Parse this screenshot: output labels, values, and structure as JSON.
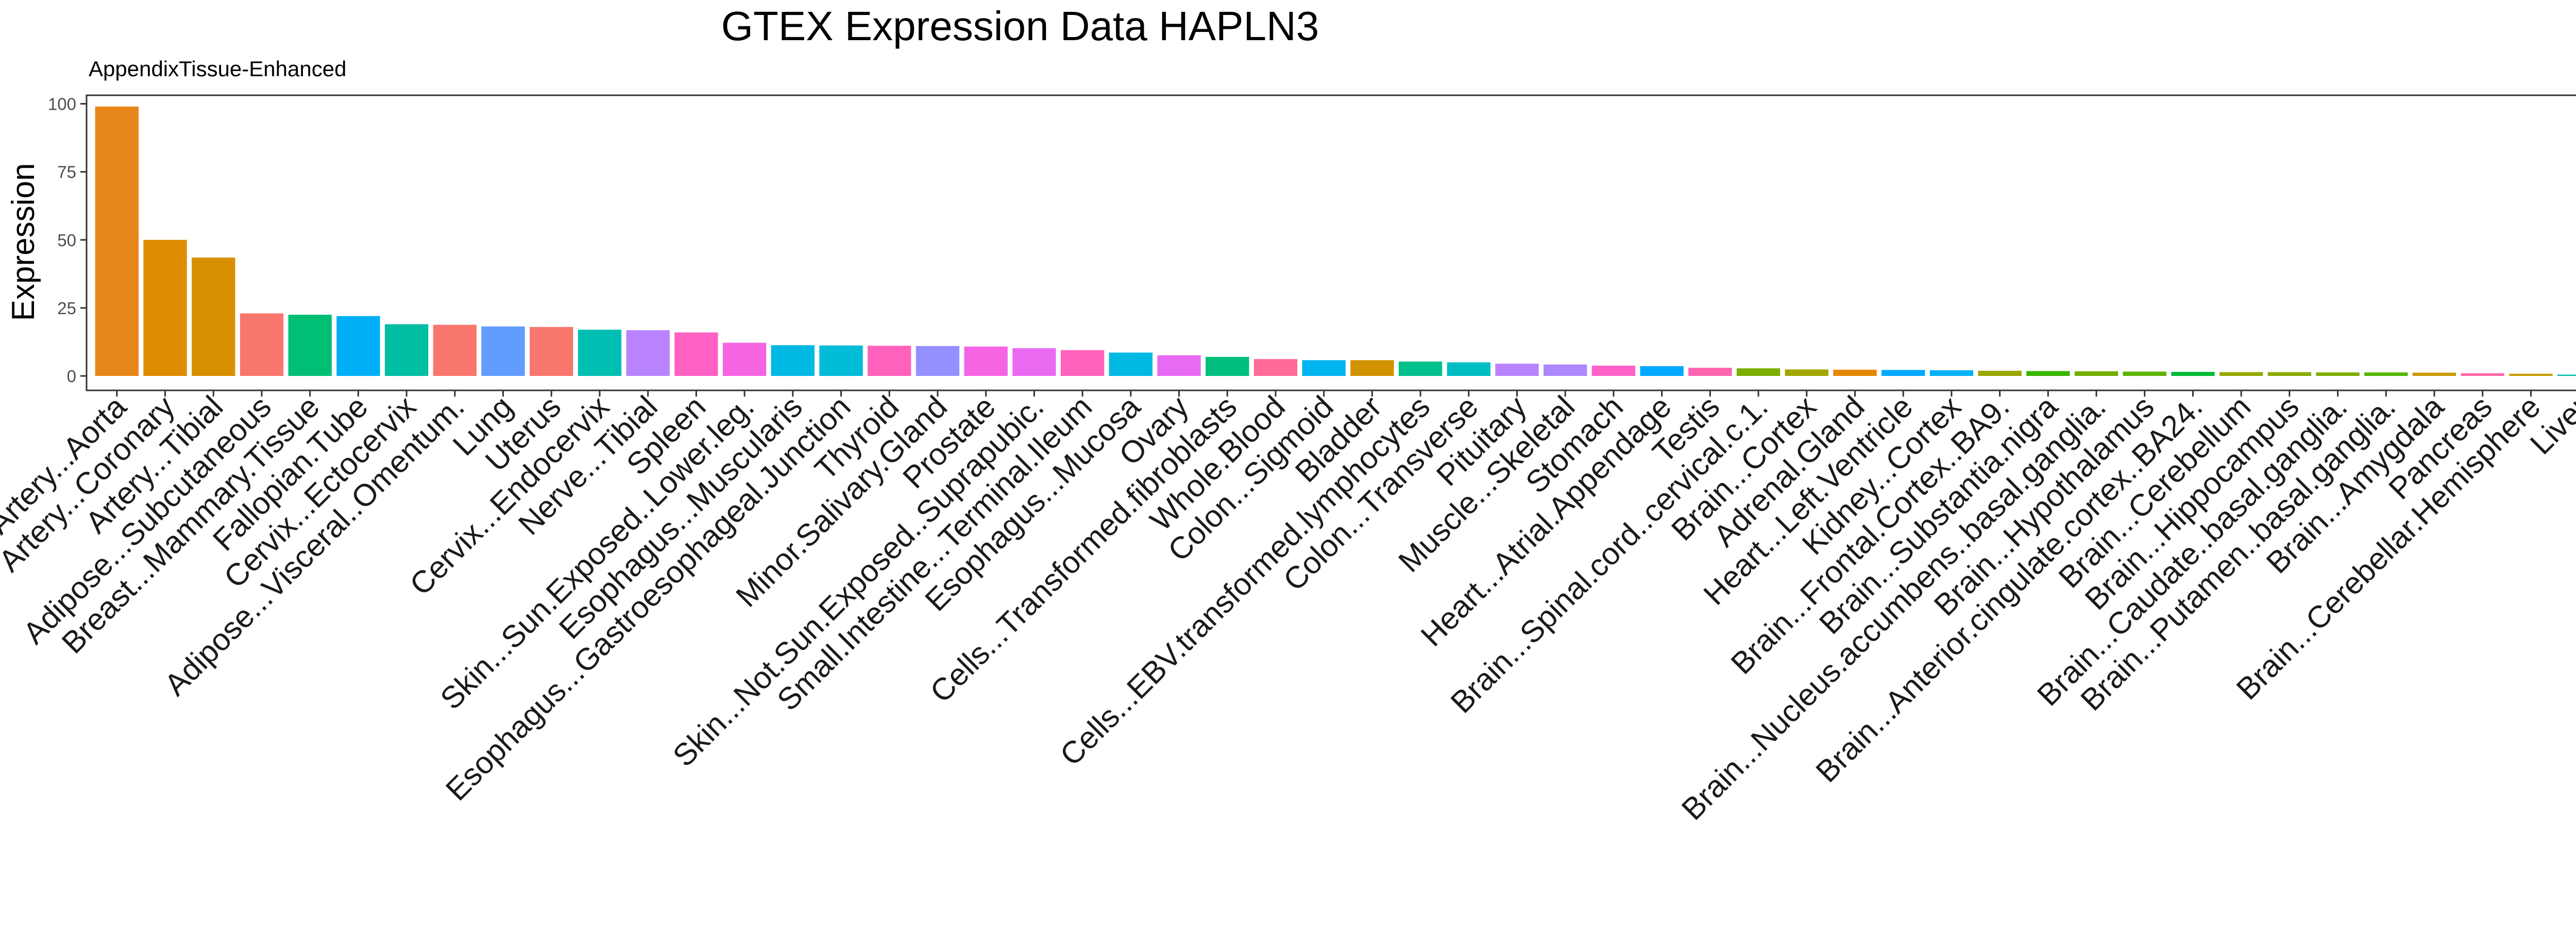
{
  "chart_data": {
    "type": "bar",
    "title": "GTEX Expression Data HAPLN3",
    "subtitle": "AppendixTissue-Enhanced",
    "xlabel": "",
    "ylabel": "Expression",
    "ylim": [
      0,
      102
    ],
    "yticks": [
      0,
      25,
      50,
      75,
      100
    ],
    "grid": false,
    "legend": "none",
    "categories": [
      "Artery...Aorta",
      "Artery...Coronary",
      "Artery...Tibial",
      "Adipose...Subcutaneous",
      "Breast...Mammary.Tissue",
      "Fallopian.Tube",
      "Cervix...Ectocervix",
      "Adipose...Visceral..Omentum.",
      "Lung",
      "Uterus",
      "Cervix...Endocervix",
      "Nerve...Tibial",
      "Spleen",
      "Skin...Sun.Exposed..Lower.leg.",
      "Esophagus...Muscularis",
      "Esophagus...Gastroesophageal.Junction",
      "Thyroid",
      "Minor.Salivary.Gland",
      "Prostate",
      "Skin...Not.Sun.Exposed..Suprapubic.",
      "Small.Intestine...Terminal.Ileum",
      "Esophagus...Mucosa",
      "Ovary",
      "Cells...Transformed.fibroblasts",
      "Whole.Blood",
      "Colon...Sigmoid",
      "Bladder",
      "Cells...EBV.transformed.lymphocytes",
      "Colon...Transverse",
      "Pituitary",
      "Muscle...Skeletal",
      "Stomach",
      "Heart...Atrial.Appendage",
      "Testis",
      "Brain...Spinal.cord..cervical.c.1.",
      "Brain...Cortex",
      "Adrenal.Gland",
      "Heart...Left.Ventricle",
      "Kidney...Cortex",
      "Brain...Frontal.Cortex..BA9.",
      "Brain...Substantia.nigra",
      "Brain...Nucleus.accumbens..basal.ganglia.",
      "Brain...Hypothalamus",
      "Brain...Anterior.cingulate.cortex..BA24.",
      "Brain...Cerebellum",
      "Brain...Hippocampus",
      "Brain...Caudate..basal.ganglia.",
      "Brain...Putamen..basal.ganglia.",
      "Brain...Amygdala",
      "Pancreas",
      "Brain...Cerebellar.Hemisphere",
      "Liver"
    ],
    "values": [
      99,
      50,
      43.5,
      23,
      22.5,
      22,
      19,
      18.8,
      18.2,
      18,
      17,
      16.8,
      16,
      12.2,
      11.3,
      11.2,
      11.1,
      11,
      10.8,
      10.2,
      9.5,
      8.6,
      7.6,
      7,
      6.2,
      5.8,
      5.8,
      5.3,
      5,
      4.5,
      4.2,
      3.8,
      3.6,
      3,
      2.8,
      2.4,
      2.3,
      2.2,
      2.1,
      1.9,
      1.8,
      1.7,
      1.6,
      1.5,
      1.4,
      1.4,
      1.3,
      1.3,
      1.2,
      1,
      0.8,
      0.5
    ],
    "colors": [
      "#E7861A",
      "#DE8C00",
      "#D89000",
      "#F8766D",
      "#00BF74",
      "#00B0F6",
      "#00BFA3",
      "#F8766D",
      "#619CFF",
      "#F8766D",
      "#00BFB2",
      "#B983FF",
      "#FF61C3",
      "#F564E3",
      "#00B9E3",
      "#00BCD8",
      "#FF62BC",
      "#9590FF",
      "#F564E3",
      "#EA6AF1",
      "#FF62BC",
      "#00B9E3",
      "#E76BF3",
      "#00BF7D",
      "#FF6A98",
      "#00B4EF",
      "#D39200",
      "#00C08B",
      "#00BEC4",
      "#B983FF",
      "#AC88FF",
      "#FF61C9",
      "#00A9FF",
      "#FF64B0",
      "#7CAE00",
      "#A3A500",
      "#E58700",
      "#00A9FF",
      "#00B0F6",
      "#9CA700",
      "#39B600",
      "#72B000",
      "#5EB300",
      "#00BA38",
      "#94A900",
      "#8AAB00",
      "#7CAE00",
      "#53B400",
      "#C99800",
      "#FF67A4",
      "#C49A00",
      "#00C0AF"
    ]
  }
}
